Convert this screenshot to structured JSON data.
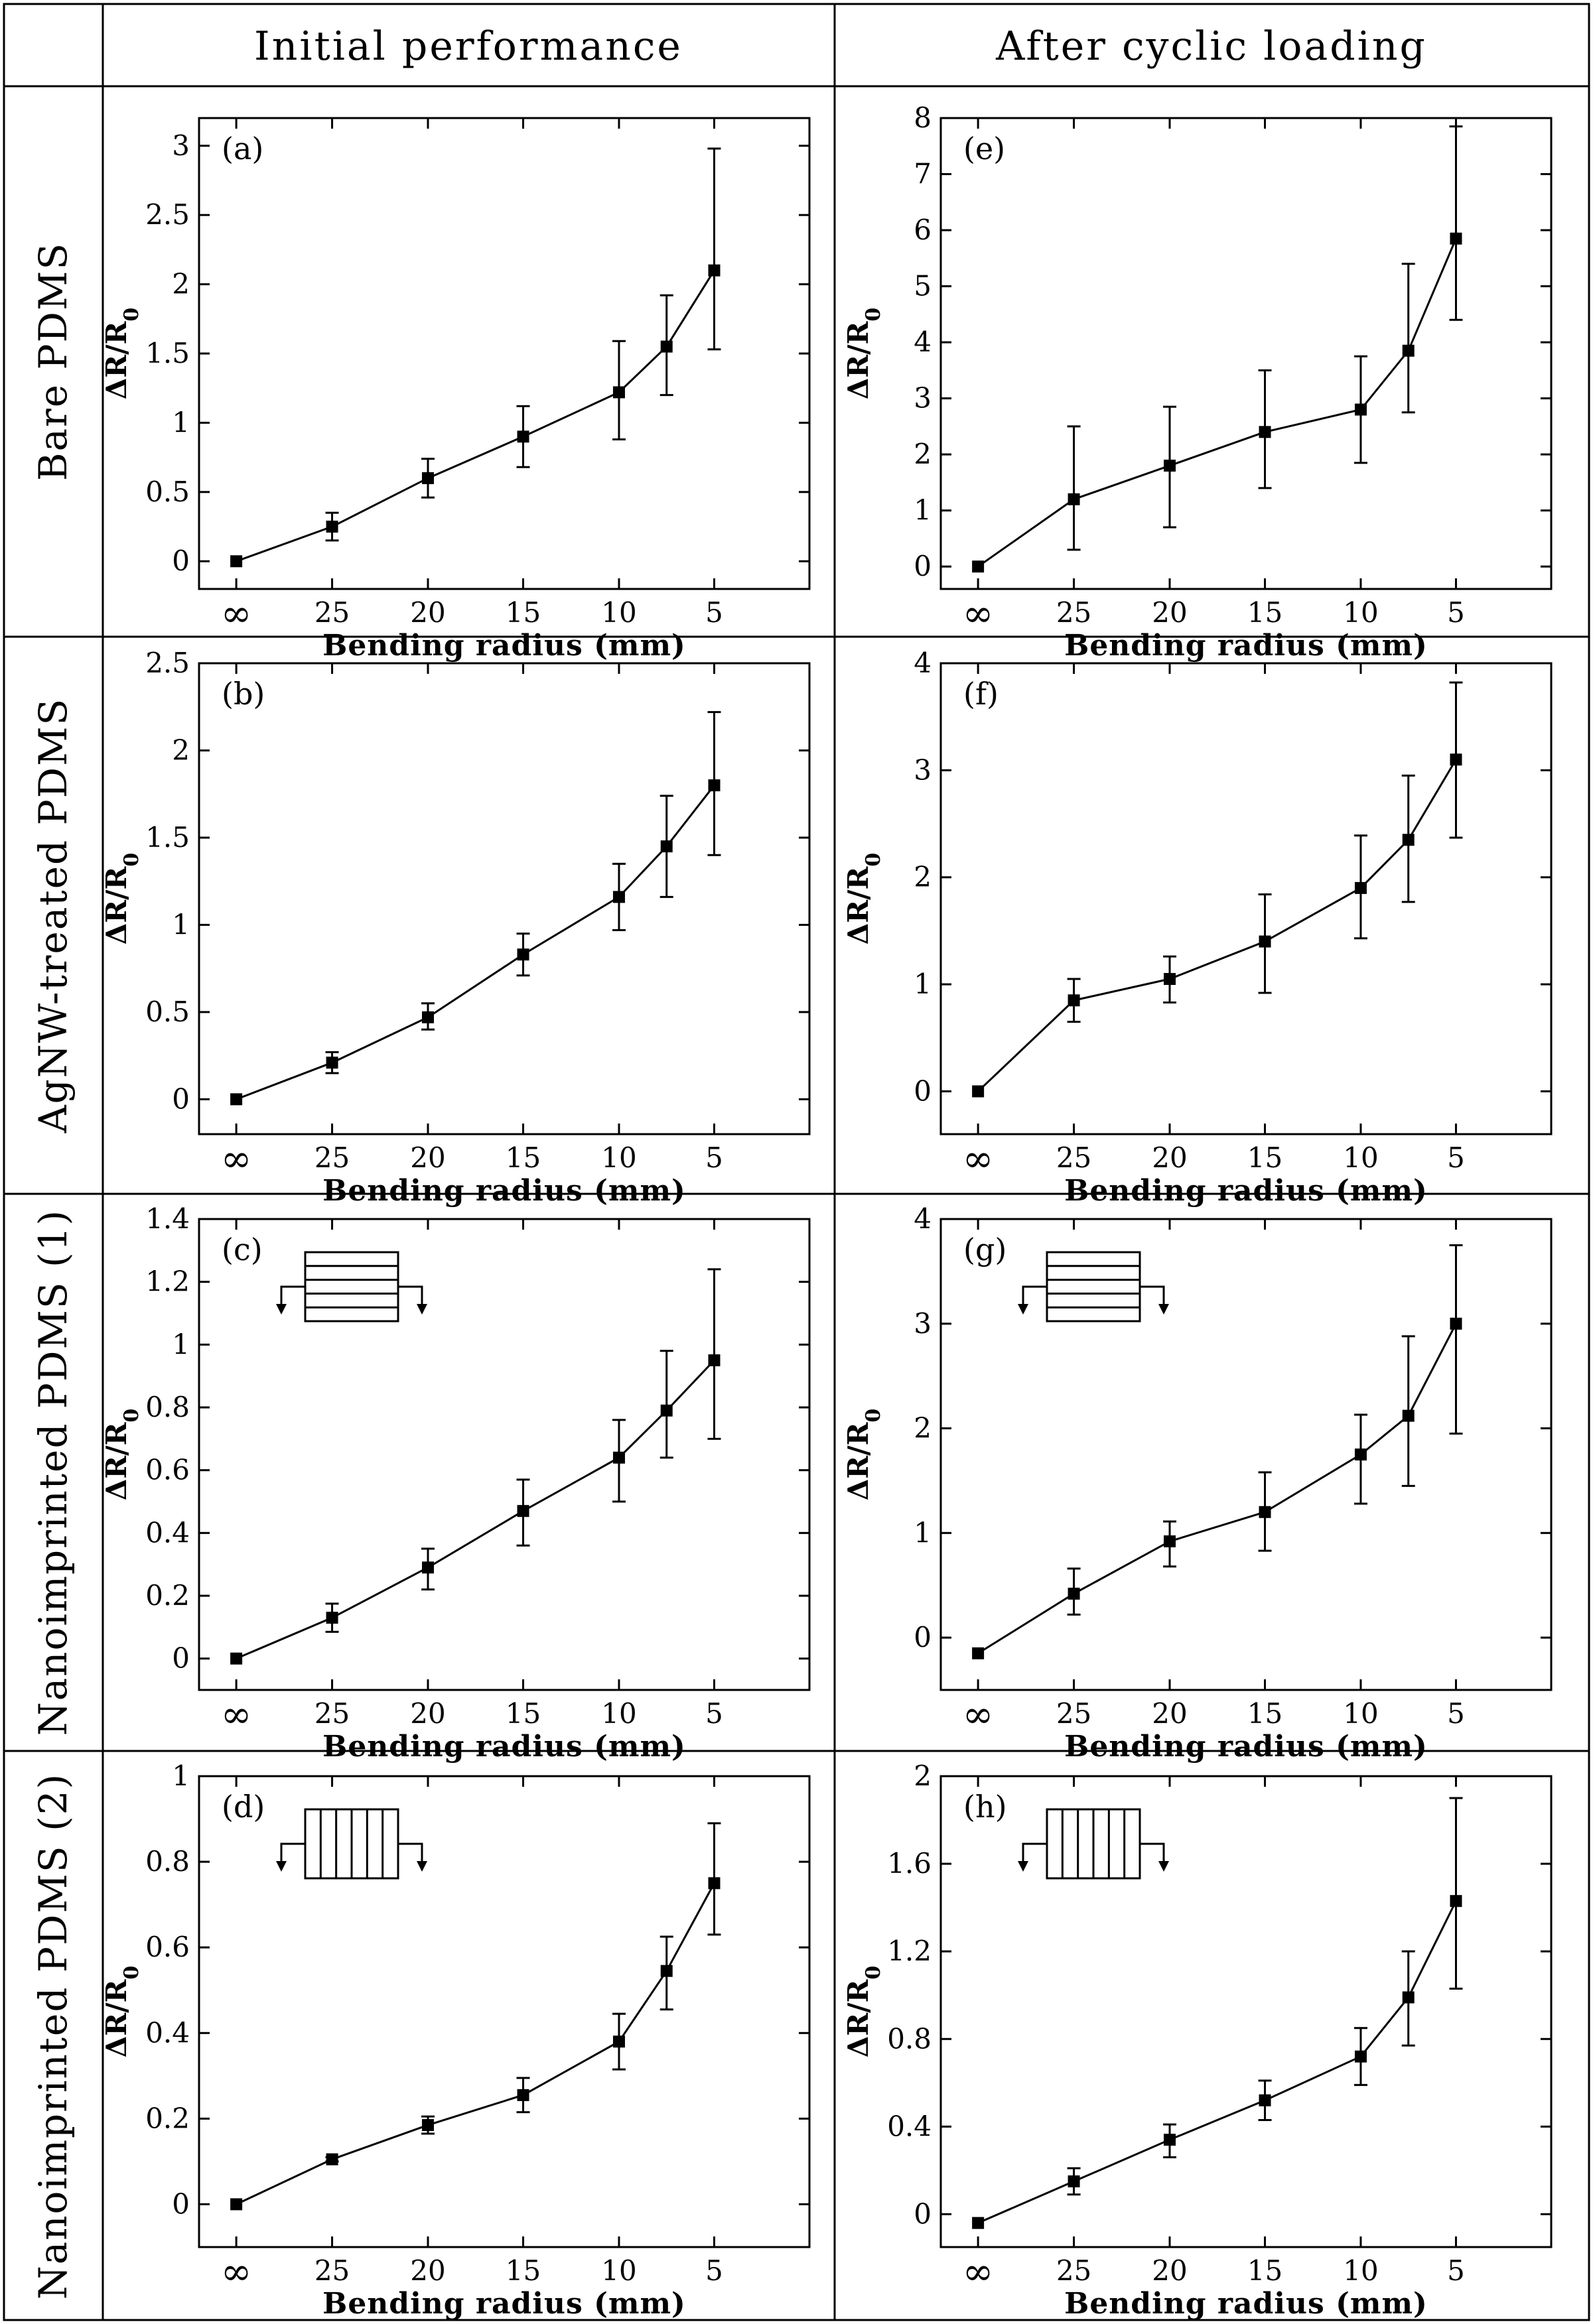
{
  "headers": {
    "col1": "Initial performance",
    "col2": "After cyclic loading"
  },
  "row_labels": [
    "Bare PDMS",
    "AgNW-treated PDMS",
    "Nanoimprinted PDMS (1)",
    "Nanoimprinted PDMS (2)"
  ],
  "chart_data": [
    {
      "panel": "(a)",
      "type": "line",
      "row": 0,
      "col": 0,
      "xlabel": "Bending radius (mm)",
      "ylabel_main": "ΔR/R",
      "ylabel_sub": "0",
      "x_tick_labels": [
        "∞",
        "25",
        "20",
        "15",
        "10",
        "5"
      ],
      "categories": [
        "∞",
        "25",
        "20",
        "15",
        "10",
        "7.5",
        "5"
      ],
      "values": [
        0,
        0.25,
        0.6,
        0.9,
        1.22,
        1.55,
        2.1
      ],
      "err_lo": [
        0,
        0.1,
        0.14,
        0.22,
        0.34,
        0.35,
        0.57
      ],
      "err_hi": [
        0,
        0.1,
        0.14,
        0.22,
        0.37,
        0.37,
        0.88
      ],
      "ylim": [
        -0.2,
        3.2
      ],
      "yticks": [
        0,
        0.5,
        1,
        1.5,
        2,
        2.5,
        3
      ],
      "ytick_labels": [
        "0",
        "0.5",
        "1",
        "1.5",
        "2",
        "2.5",
        "3"
      ],
      "inset": "none"
    },
    {
      "panel": "(e)",
      "type": "line",
      "row": 0,
      "col": 1,
      "xlabel": "Bending radius (mm)",
      "ylabel_main": "ΔR/R",
      "ylabel_sub": "0",
      "x_tick_labels": [
        "∞",
        "25",
        "20",
        "15",
        "10",
        "5"
      ],
      "categories": [
        "∞",
        "25",
        "20",
        "15",
        "10",
        "7.5",
        "5"
      ],
      "values": [
        0,
        1.2,
        1.8,
        2.4,
        2.8,
        3.85,
        5.85
      ],
      "err_lo": [
        0,
        0.9,
        1.1,
        1.0,
        0.95,
        1.1,
        1.45
      ],
      "err_hi": [
        0,
        1.3,
        1.05,
        1.1,
        0.95,
        1.55,
        2.0
      ],
      "ylim": [
        -0.4,
        8.0
      ],
      "yticks": [
        0,
        1,
        2,
        3,
        4,
        5,
        6,
        7,
        8
      ],
      "ytick_labels": [
        "0",
        "1",
        "2",
        "3",
        "4",
        "5",
        "6",
        "7",
        "8"
      ],
      "inset": "none"
    },
    {
      "panel": "(b)",
      "type": "line",
      "row": 1,
      "col": 0,
      "xlabel": "Bending radius (mm)",
      "ylabel_main": "ΔR/R",
      "ylabel_sub": "0",
      "x_tick_labels": [
        "∞",
        "25",
        "20",
        "15",
        "10",
        "5"
      ],
      "categories": [
        "∞",
        "25",
        "20",
        "15",
        "10",
        "7.5",
        "5"
      ],
      "values": [
        0,
        0.21,
        0.47,
        0.83,
        1.16,
        1.45,
        1.8
      ],
      "err_lo": [
        0,
        0.06,
        0.07,
        0.12,
        0.19,
        0.29,
        0.4
      ],
      "err_hi": [
        0,
        0.06,
        0.08,
        0.12,
        0.19,
        0.29,
        0.42
      ],
      "ylim": [
        -0.2,
        2.5
      ],
      "yticks": [
        0,
        0.5,
        1,
        1.5,
        2,
        2.5
      ],
      "ytick_labels": [
        "0",
        "0.5",
        "1",
        "1.5",
        "2",
        "2.5"
      ],
      "inset": "none"
    },
    {
      "panel": "(f)",
      "type": "line",
      "row": 1,
      "col": 1,
      "xlabel": "Bending radius (mm)",
      "ylabel_main": "ΔR/R",
      "ylabel_sub": "0",
      "x_tick_labels": [
        "∞",
        "25",
        "20",
        "15",
        "10",
        "5"
      ],
      "categories": [
        "∞",
        "25",
        "20",
        "15",
        "10",
        "7.5",
        "5"
      ],
      "values": [
        0,
        0.85,
        1.05,
        1.4,
        1.9,
        2.35,
        3.1
      ],
      "err_lo": [
        0,
        0.2,
        0.22,
        0.48,
        0.47,
        0.58,
        0.73
      ],
      "err_hi": [
        0,
        0.2,
        0.21,
        0.44,
        0.49,
        0.6,
        0.72
      ],
      "ylim": [
        -0.4,
        4.0
      ],
      "yticks": [
        0,
        1,
        2,
        3,
        4
      ],
      "ytick_labels": [
        "0",
        "1",
        "2",
        "3",
        "4"
      ],
      "inset": "none"
    },
    {
      "panel": "(c)",
      "type": "line",
      "row": 2,
      "col": 0,
      "xlabel": "Bending radius (mm)",
      "ylabel_main": "ΔR/R",
      "ylabel_sub": "0",
      "x_tick_labels": [
        "∞",
        "25",
        "20",
        "15",
        "10",
        "5"
      ],
      "categories": [
        "∞",
        "25",
        "20",
        "15",
        "10",
        "7.5",
        "5"
      ],
      "values": [
        0,
        0.13,
        0.29,
        0.47,
        0.64,
        0.79,
        0.95
      ],
      "err_lo": [
        0,
        0.045,
        0.07,
        0.11,
        0.14,
        0.15,
        0.25
      ],
      "err_hi": [
        0,
        0.045,
        0.06,
        0.1,
        0.12,
        0.19,
        0.29
      ],
      "ylim": [
        -0.1,
        1.4
      ],
      "yticks": [
        0,
        0.2,
        0.4,
        0.6,
        0.8,
        1,
        1.2,
        1.4
      ],
      "ytick_labels": [
        "0",
        "0.2",
        "0.4",
        "0.6",
        "0.8",
        "1",
        "1.2",
        "1.4"
      ],
      "inset": "horizontal"
    },
    {
      "panel": "(g)",
      "type": "line",
      "row": 2,
      "col": 1,
      "xlabel": "Bending radius (mm)",
      "ylabel_main": "ΔR/R",
      "ylabel_sub": "0",
      "x_tick_labels": [
        "∞",
        "25",
        "20",
        "15",
        "10",
        "5"
      ],
      "categories": [
        "∞",
        "25",
        "20",
        "15",
        "10",
        "7.5",
        "5"
      ],
      "values": [
        -0.15,
        0.42,
        0.92,
        1.2,
        1.75,
        2.12,
        3.0
      ],
      "err_lo": [
        0,
        0.2,
        0.24,
        0.37,
        0.47,
        0.67,
        1.05
      ],
      "err_hi": [
        0,
        0.24,
        0.19,
        0.38,
        0.38,
        0.76,
        0.75
      ],
      "ylim": [
        -0.5,
        4.0
      ],
      "yticks": [
        0,
        1,
        2,
        3,
        4
      ],
      "ytick_labels": [
        "0",
        "1",
        "2",
        "3",
        "4"
      ],
      "inset": "horizontal"
    },
    {
      "panel": "(d)",
      "type": "line",
      "row": 3,
      "col": 0,
      "xlabel": "Bending radius (mm)",
      "ylabel_main": "ΔR/R",
      "ylabel_sub": "0",
      "x_tick_labels": [
        "∞",
        "25",
        "20",
        "15",
        "10",
        "5"
      ],
      "categories": [
        "∞",
        "25",
        "20",
        "15",
        "10",
        "7.5",
        "5"
      ],
      "values": [
        0,
        0.105,
        0.185,
        0.255,
        0.38,
        0.545,
        0.75
      ],
      "err_lo": [
        0,
        0.005,
        0.02,
        0.04,
        0.065,
        0.09,
        0.12
      ],
      "err_hi": [
        0,
        0.005,
        0.02,
        0.04,
        0.065,
        0.08,
        0.14
      ],
      "ylim": [
        -0.1,
        1.0
      ],
      "yticks": [
        0,
        0.2,
        0.4,
        0.6,
        0.8,
        1
      ],
      "ytick_labels": [
        "0",
        "0.2",
        "0.4",
        "0.6",
        "0.8",
        "1"
      ],
      "inset": "vertical"
    },
    {
      "panel": "(h)",
      "type": "line",
      "row": 3,
      "col": 1,
      "xlabel": "Bending radius (mm)",
      "ylabel_main": "ΔR/R",
      "ylabel_sub": "0",
      "x_tick_labels": [
        "∞",
        "25",
        "20",
        "15",
        "10",
        "5"
      ],
      "categories": [
        "∞",
        "25",
        "20",
        "15",
        "10",
        "7.5",
        "5"
      ],
      "values": [
        -0.04,
        0.15,
        0.34,
        0.52,
        0.72,
        0.99,
        1.43
      ],
      "err_lo": [
        0,
        0.06,
        0.08,
        0.09,
        0.13,
        0.22,
        0.4
      ],
      "err_hi": [
        0,
        0.06,
        0.07,
        0.09,
        0.13,
        0.21,
        0.47
      ],
      "ylim": [
        -0.15,
        2.0
      ],
      "yticks": [
        0,
        0.4,
        0.8,
        1.2,
        1.6,
        2
      ],
      "ytick_labels": [
        "0",
        "0.4",
        "0.8",
        "1.2",
        "1.6",
        "2"
      ],
      "inset": "vertical"
    }
  ]
}
